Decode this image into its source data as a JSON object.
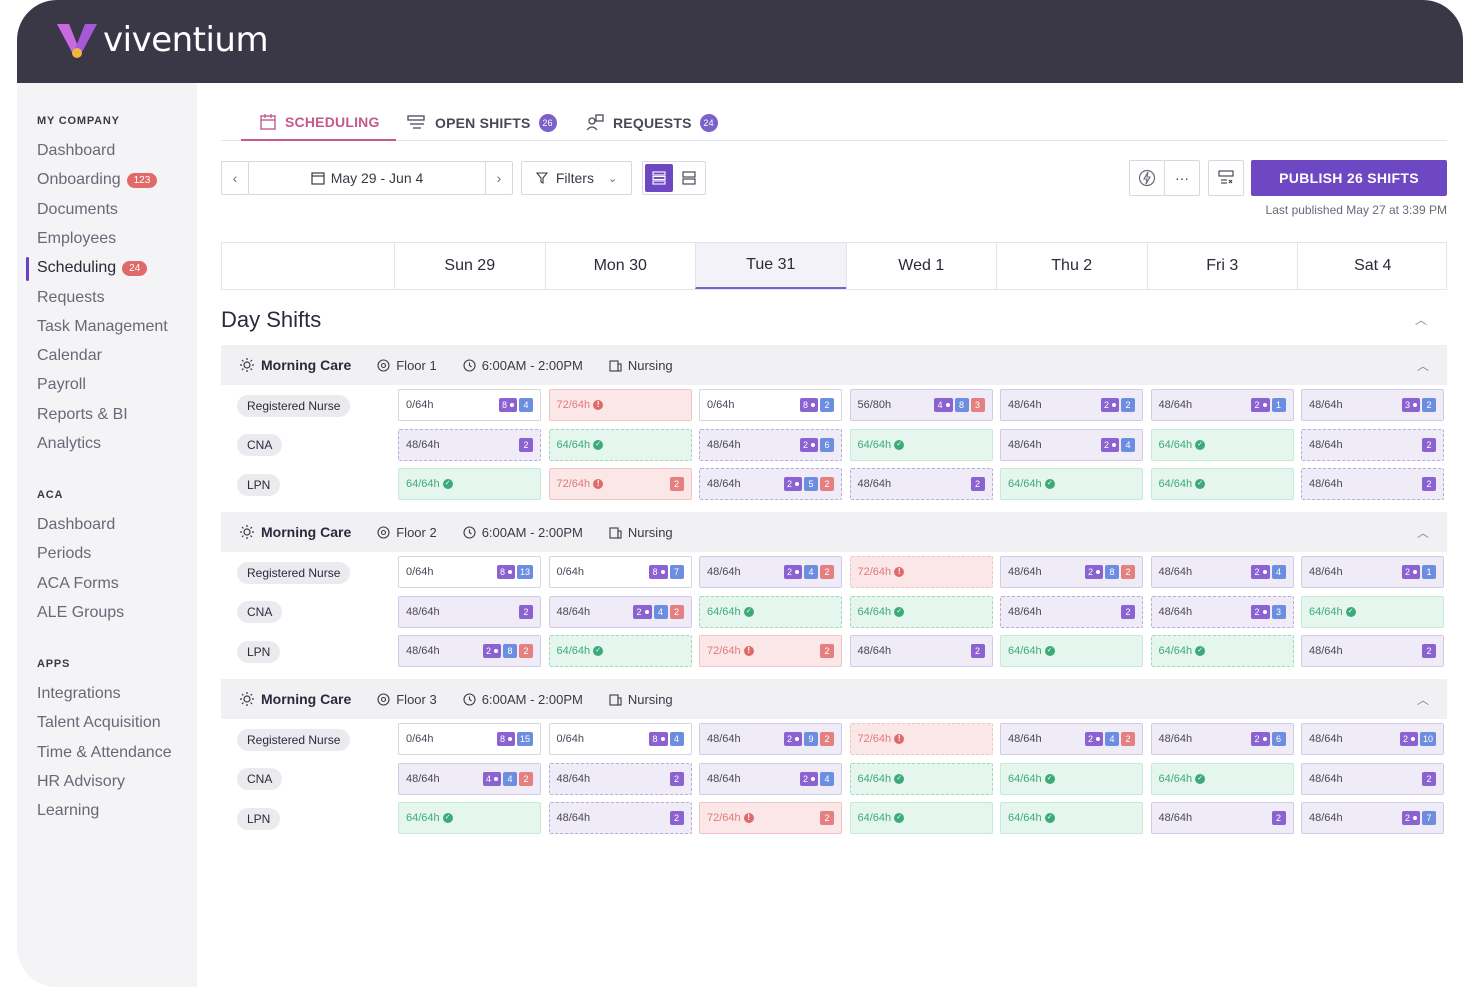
{
  "brand": {
    "name": "viventium"
  },
  "sidebar": {
    "sections": [
      {
        "title": "MY COMPANY",
        "items": [
          {
            "label": "Dashboard"
          },
          {
            "label": "Onboarding",
            "badge": "123"
          },
          {
            "label": "Documents"
          },
          {
            "label": "Employees"
          },
          {
            "label": "Scheduling",
            "badge": "24",
            "active": true
          },
          {
            "label": "Requests"
          },
          {
            "label": "Task Management"
          },
          {
            "label": "Calendar"
          },
          {
            "label": "Payroll"
          },
          {
            "label": "Reports & BI"
          },
          {
            "label": "Analytics"
          }
        ]
      },
      {
        "title": "ACA",
        "items": [
          {
            "label": "Dashboard"
          },
          {
            "label": "Periods"
          },
          {
            "label": "ACA Forms"
          },
          {
            "label": "ALE Groups"
          }
        ]
      },
      {
        "title": "APPS",
        "items": [
          {
            "label": "Integrations"
          },
          {
            "label": "Talent Acquisition"
          },
          {
            "label": "Time & Attendance"
          },
          {
            "label": "HR Advisory"
          },
          {
            "label": "Learning"
          }
        ]
      }
    ]
  },
  "tabs": [
    {
      "label": "SCHEDULING",
      "icon": "calendar-icon",
      "active": true
    },
    {
      "label": "OPEN SHIFTS",
      "badge": "26",
      "icon": "list-icon"
    },
    {
      "label": "REQUESTS",
      "badge": "24",
      "icon": "people-icon"
    }
  ],
  "toolbar": {
    "date_range": "May 29 - Jun 4",
    "filters_label": "Filters",
    "publish_label": "PUBLISH 26 SHIFTS",
    "last_published": "Last published May 27 at 3:39 PM"
  },
  "days": [
    "Sun 29",
    "Mon 30",
    "Tue 31",
    "Wed 1",
    "Thu 2",
    "Fri 3",
    "Sat 4"
  ],
  "selected_day": "Tue 31",
  "section_title": "Day Shifts",
  "groups": [
    {
      "name": "Morning Care",
      "floor": "Floor 1",
      "time": "6:00AM - 2:00PM",
      "dept": "Nursing",
      "rows": [
        {
          "role": "Registered Nurse",
          "cells": [
            {
              "v": "0/64h",
              "s": "white",
              "b": [
                [
                  "8",
                  "pu",
                  1
                ],
                [
                  "4",
                  "bl",
                  0
                ]
              ]
            },
            {
              "v": "72/64h",
              "s": "red",
              "st": "bad",
              "b": []
            },
            {
              "v": "0/64h",
              "s": "white",
              "b": [
                [
                  "8",
                  "pu",
                  1
                ],
                [
                  "2",
                  "bl",
                  0
                ]
              ]
            },
            {
              "v": "56/80h",
              "s": "purple-solid",
              "b": [
                [
                  "4",
                  "pu",
                  1
                ],
                [
                  "8",
                  "bl",
                  0
                ],
                [
                  "3",
                  "rd",
                  0
                ]
              ]
            },
            {
              "v": "48/64h",
              "s": "purple-solid",
              "b": [
                [
                  "2",
                  "pu",
                  1
                ],
                [
                  "2",
                  "bl",
                  0
                ]
              ]
            },
            {
              "v": "48/64h",
              "s": "purple-solid",
              "b": [
                [
                  "2",
                  "pu",
                  1
                ],
                [
                  "1",
                  "bl",
                  0
                ]
              ]
            },
            {
              "v": "48/64h",
              "s": "purple-solid",
              "b": [
                [
                  "3",
                  "pu",
                  1
                ],
                [
                  "2",
                  "bl",
                  0
                ]
              ]
            }
          ]
        },
        {
          "role": "CNA",
          "cells": [
            {
              "v": "48/64h",
              "s": "purple",
              "b": [
                [
                  "2",
                  "pu",
                  0
                ]
              ]
            },
            {
              "v": "64/64h",
              "s": "green",
              "st": "ok",
              "b": []
            },
            {
              "v": "48/64h",
              "s": "purple",
              "b": [
                [
                  "2",
                  "pu",
                  1
                ],
                [
                  "6",
                  "bl",
                  0
                ]
              ]
            },
            {
              "v": "64/64h",
              "s": "green-solid",
              "st": "ok",
              "b": []
            },
            {
              "v": "48/64h",
              "s": "purple-solid",
              "b": [
                [
                  "2",
                  "pu",
                  1
                ],
                [
                  "4",
                  "bl",
                  0
                ]
              ]
            },
            {
              "v": "64/64h",
              "s": "green-solid",
              "st": "ok",
              "b": []
            },
            {
              "v": "48/64h",
              "s": "purple",
              "b": [
                [
                  "2",
                  "pu",
                  0
                ]
              ]
            }
          ]
        },
        {
          "role": "LPN",
          "cells": [
            {
              "v": "64/64h",
              "s": "green-solid",
              "st": "ok",
              "b": []
            },
            {
              "v": "72/64h",
              "s": "red",
              "st": "bad",
              "b": [
                [
                  "2",
                  "rd",
                  0
                ]
              ]
            },
            {
              "v": "48/64h",
              "s": "purple",
              "b": [
                [
                  "2",
                  "pu",
                  1
                ],
                [
                  "5",
                  "bl",
                  0
                ],
                [
                  "2",
                  "rd",
                  0
                ]
              ]
            },
            {
              "v": "48/64h",
              "s": "purple",
              "b": [
                [
                  "2",
                  "pu",
                  0
                ]
              ]
            },
            {
              "v": "64/64h",
              "s": "green-solid",
              "st": "ok",
              "b": []
            },
            {
              "v": "64/64h",
              "s": "green-solid",
              "st": "ok",
              "b": []
            },
            {
              "v": "48/64h",
              "s": "purple",
              "b": [
                [
                  "2",
                  "pu",
                  0
                ]
              ]
            }
          ]
        }
      ]
    },
    {
      "name": "Morning Care",
      "floor": "Floor 2",
      "time": "6:00AM - 2:00PM",
      "dept": "Nursing",
      "rows": [
        {
          "role": "Registered Nurse",
          "cells": [
            {
              "v": "0/64h",
              "s": "white",
              "b": [
                [
                  "8",
                  "pu",
                  1
                ],
                [
                  "13",
                  "bl",
                  0
                ]
              ]
            },
            {
              "v": "0/64h",
              "s": "white",
              "b": [
                [
                  "8",
                  "pu",
                  1
                ],
                [
                  "7",
                  "bl",
                  0
                ]
              ]
            },
            {
              "v": "48/64h",
              "s": "purple-solid",
              "b": [
                [
                  "2",
                  "pu",
                  1
                ],
                [
                  "4",
                  "bl",
                  0
                ],
                [
                  "2",
                  "rd",
                  0
                ]
              ]
            },
            {
              "v": "72/64h",
              "s": "red-dashed",
              "st": "bad",
              "b": []
            },
            {
              "v": "48/64h",
              "s": "purple-solid",
              "b": [
                [
                  "2",
                  "pu",
                  1
                ],
                [
                  "8",
                  "bl",
                  0
                ],
                [
                  "2",
                  "rd",
                  0
                ]
              ]
            },
            {
              "v": "48/64h",
              "s": "purple-solid",
              "b": [
                [
                  "2",
                  "pu",
                  1
                ],
                [
                  "4",
                  "bl",
                  0
                ]
              ]
            },
            {
              "v": "48/64h",
              "s": "purple-solid",
              "b": [
                [
                  "2",
                  "pu",
                  1
                ],
                [
                  "1",
                  "bl",
                  0
                ]
              ]
            }
          ]
        },
        {
          "role": "CNA",
          "cells": [
            {
              "v": "48/64h",
              "s": "purple-solid",
              "b": [
                [
                  "2",
                  "pu",
                  0
                ]
              ]
            },
            {
              "v": "48/64h",
              "s": "purple-solid",
              "b": [
                [
                  "2",
                  "pu",
                  1
                ],
                [
                  "4",
                  "bl",
                  0
                ],
                [
                  "2",
                  "rd",
                  0
                ]
              ]
            },
            {
              "v": "64/64h",
              "s": "green",
              "st": "ok",
              "b": []
            },
            {
              "v": "64/64h",
              "s": "green",
              "st": "ok",
              "b": []
            },
            {
              "v": "48/64h",
              "s": "purple",
              "b": [
                [
                  "2",
                  "pu",
                  0
                ]
              ]
            },
            {
              "v": "48/64h",
              "s": "purple",
              "b": [
                [
                  "2",
                  "pu",
                  1
                ],
                [
                  "3",
                  "bl",
                  0
                ]
              ]
            },
            {
              "v": "64/64h",
              "s": "green-solid",
              "st": "ok",
              "b": []
            }
          ]
        },
        {
          "role": "LPN",
          "cells": [
            {
              "v": "48/64h",
              "s": "purple-solid",
              "b": [
                [
                  "2",
                  "pu",
                  1
                ],
                [
                  "8",
                  "bl",
                  0
                ],
                [
                  "2",
                  "rd",
                  0
                ]
              ]
            },
            {
              "v": "64/64h",
              "s": "green",
              "st": "ok",
              "b": []
            },
            {
              "v": "72/64h",
              "s": "red",
              "st": "bad",
              "b": [
                [
                  "2",
                  "rd",
                  0
                ]
              ]
            },
            {
              "v": "48/64h",
              "s": "purple-solid",
              "b": [
                [
                  "2",
                  "pu",
                  0
                ]
              ]
            },
            {
              "v": "64/64h",
              "s": "green-solid",
              "st": "ok",
              "b": []
            },
            {
              "v": "64/64h",
              "s": "green",
              "st": "ok",
              "b": []
            },
            {
              "v": "48/64h",
              "s": "purple-solid",
              "b": [
                [
                  "2",
                  "pu",
                  0
                ]
              ]
            }
          ]
        }
      ]
    },
    {
      "name": "Morning Care",
      "floor": "Floor 3",
      "time": "6:00AM - 2:00PM",
      "dept": "Nursing",
      "rows": [
        {
          "role": "Registered Nurse",
          "cells": [
            {
              "v": "0/64h",
              "s": "white",
              "b": [
                [
                  "8",
                  "pu",
                  1
                ],
                [
                  "15",
                  "bl",
                  0
                ]
              ]
            },
            {
              "v": "0/64h",
              "s": "white",
              "b": [
                [
                  "8",
                  "pu",
                  1
                ],
                [
                  "4",
                  "bl",
                  0
                ]
              ]
            },
            {
              "v": "48/64h",
              "s": "purple-solid",
              "b": [
                [
                  "2",
                  "pu",
                  1
                ],
                [
                  "9",
                  "bl",
                  0
                ],
                [
                  "2",
                  "rd",
                  0
                ]
              ]
            },
            {
              "v": "72/64h",
              "s": "red-dashed",
              "st": "bad",
              "b": []
            },
            {
              "v": "48/64h",
              "s": "purple-solid",
              "b": [
                [
                  "2",
                  "pu",
                  1
                ],
                [
                  "4",
                  "bl",
                  0
                ],
                [
                  "2",
                  "rd",
                  0
                ]
              ]
            },
            {
              "v": "48/64h",
              "s": "purple-solid",
              "b": [
                [
                  "2",
                  "pu",
                  1
                ],
                [
                  "6",
                  "bl",
                  0
                ]
              ]
            },
            {
              "v": "48/64h",
              "s": "purple-solid",
              "b": [
                [
                  "2",
                  "pu",
                  1
                ],
                [
                  "10",
                  "bl",
                  0
                ]
              ]
            }
          ]
        },
        {
          "role": "CNA",
          "cells": [
            {
              "v": "48/64h",
              "s": "purple-solid",
              "b": [
                [
                  "4",
                  "pu",
                  1
                ],
                [
                  "4",
                  "bl",
                  0
                ],
                [
                  "2",
                  "rd",
                  0
                ]
              ]
            },
            {
              "v": "48/64h",
              "s": "purple",
              "b": [
                [
                  "2",
                  "pu",
                  0
                ]
              ]
            },
            {
              "v": "48/64h",
              "s": "purple-solid",
              "b": [
                [
                  "2",
                  "pu",
                  1
                ],
                [
                  "4",
                  "bl",
                  0
                ]
              ]
            },
            {
              "v": "64/64h",
              "s": "green",
              "st": "ok",
              "b": []
            },
            {
              "v": "64/64h",
              "s": "green-solid",
              "st": "ok",
              "b": []
            },
            {
              "v": "64/64h",
              "s": "green-solid",
              "st": "ok",
              "b": []
            },
            {
              "v": "48/64h",
              "s": "purple-solid",
              "b": [
                [
                  "2",
                  "pu",
                  0
                ]
              ]
            }
          ]
        },
        {
          "role": "LPN",
          "cells": [
            {
              "v": "64/64h",
              "s": "green-solid",
              "st": "ok",
              "b": []
            },
            {
              "v": "48/64h",
              "s": "purple",
              "b": [
                [
                  "2",
                  "pu",
                  0
                ]
              ]
            },
            {
              "v": "72/64h",
              "s": "red",
              "st": "bad",
              "b": [
                [
                  "2",
                  "rd",
                  0
                ]
              ]
            },
            {
              "v": "64/64h",
              "s": "green-solid",
              "st": "ok",
              "b": []
            },
            {
              "v": "64/64h",
              "s": "green-solid",
              "st": "ok",
              "b": []
            },
            {
              "v": "48/64h",
              "s": "purple-solid",
              "b": [
                [
                  "2",
                  "pu",
                  0
                ]
              ]
            },
            {
              "v": "48/64h",
              "s": "purple-solid",
              "b": [
                [
                  "2",
                  "pu",
                  1
                ],
                [
                  "7",
                  "bl",
                  0
                ]
              ]
            }
          ]
        }
      ]
    }
  ]
}
